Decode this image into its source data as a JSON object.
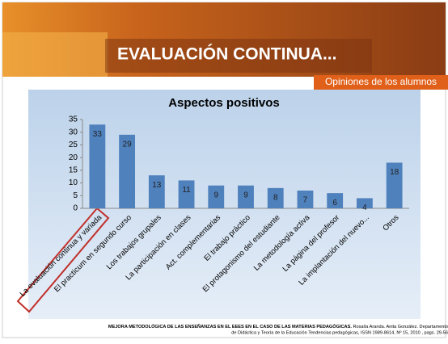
{
  "title": "EVALUACIÓN CONTINUA...",
  "subtitle": "Opiniones de los alumnos",
  "footer": {
    "bold": "MEJORA METODOLÓGICA DE LAS ENSEÑANZAS EN EL EEES EN EL CASO DE LAS MATERIAS PEDAGÓGICAS.",
    "line1": "Rosalía Aranda. Anita González. Departamento",
    "line2": "de Didáctica y Teoría de la Educación  Tendencias pedagógicas, ISSN 1989-8614, Nº 15, 2010 , pags. 29-56"
  },
  "chart_data": {
    "type": "bar",
    "title": "Aspectos positivos",
    "categories": [
      "La evaluación continua y variada",
      "El practicum en segundo curso",
      "Los trabajos grupales",
      "La participación en clases",
      "Act. complementarias",
      "El trabajo práctico",
      "El protagonismo del estudiante",
      "La metodología activa",
      "La página del profesor",
      "La implantación del nuevo...",
      "Otros"
    ],
    "values": [
      33,
      29,
      13,
      11,
      9,
      9,
      8,
      7,
      6,
      4,
      18
    ],
    "color": "#4f81bd",
    "ylim": [
      0,
      35
    ],
    "yticks": [
      0,
      5,
      10,
      15,
      20,
      25,
      30,
      35
    ],
    "grid": false
  }
}
